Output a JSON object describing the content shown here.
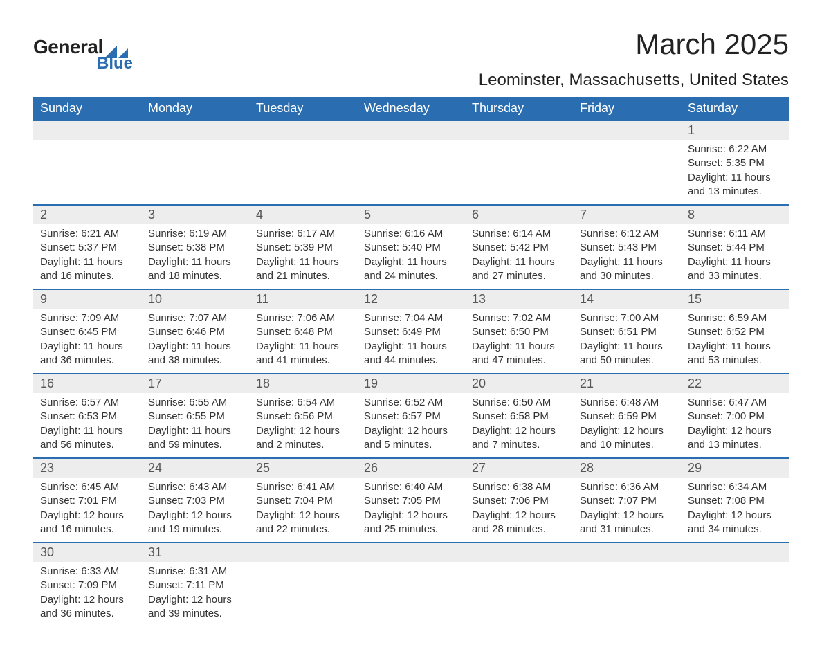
{
  "logo": {
    "main": "General",
    "sub": "Blue",
    "mark_color": "#2a6db0"
  },
  "title": "March 2025",
  "location": "Leominster, Massachusetts, United States",
  "colors": {
    "header_bg": "#2a6db0",
    "header_text": "#ffffff",
    "daynum_bg": "#ededed",
    "border": "#2a6db0",
    "text": "#333333"
  },
  "weekdays": [
    "Sunday",
    "Monday",
    "Tuesday",
    "Wednesday",
    "Thursday",
    "Friday",
    "Saturday"
  ],
  "weeks": [
    [
      null,
      null,
      null,
      null,
      null,
      null,
      {
        "n": "1",
        "sr": "Sunrise: 6:22 AM",
        "ss": "Sunset: 5:35 PM",
        "d1": "Daylight: 11 hours",
        "d2": "and 13 minutes."
      }
    ],
    [
      {
        "n": "2",
        "sr": "Sunrise: 6:21 AM",
        "ss": "Sunset: 5:37 PM",
        "d1": "Daylight: 11 hours",
        "d2": "and 16 minutes."
      },
      {
        "n": "3",
        "sr": "Sunrise: 6:19 AM",
        "ss": "Sunset: 5:38 PM",
        "d1": "Daylight: 11 hours",
        "d2": "and 18 minutes."
      },
      {
        "n": "4",
        "sr": "Sunrise: 6:17 AM",
        "ss": "Sunset: 5:39 PM",
        "d1": "Daylight: 11 hours",
        "d2": "and 21 minutes."
      },
      {
        "n": "5",
        "sr": "Sunrise: 6:16 AM",
        "ss": "Sunset: 5:40 PM",
        "d1": "Daylight: 11 hours",
        "d2": "and 24 minutes."
      },
      {
        "n": "6",
        "sr": "Sunrise: 6:14 AM",
        "ss": "Sunset: 5:42 PM",
        "d1": "Daylight: 11 hours",
        "d2": "and 27 minutes."
      },
      {
        "n": "7",
        "sr": "Sunrise: 6:12 AM",
        "ss": "Sunset: 5:43 PM",
        "d1": "Daylight: 11 hours",
        "d2": "and 30 minutes."
      },
      {
        "n": "8",
        "sr": "Sunrise: 6:11 AM",
        "ss": "Sunset: 5:44 PM",
        "d1": "Daylight: 11 hours",
        "d2": "and 33 minutes."
      }
    ],
    [
      {
        "n": "9",
        "sr": "Sunrise: 7:09 AM",
        "ss": "Sunset: 6:45 PM",
        "d1": "Daylight: 11 hours",
        "d2": "and 36 minutes."
      },
      {
        "n": "10",
        "sr": "Sunrise: 7:07 AM",
        "ss": "Sunset: 6:46 PM",
        "d1": "Daylight: 11 hours",
        "d2": "and 38 minutes."
      },
      {
        "n": "11",
        "sr": "Sunrise: 7:06 AM",
        "ss": "Sunset: 6:48 PM",
        "d1": "Daylight: 11 hours",
        "d2": "and 41 minutes."
      },
      {
        "n": "12",
        "sr": "Sunrise: 7:04 AM",
        "ss": "Sunset: 6:49 PM",
        "d1": "Daylight: 11 hours",
        "d2": "and 44 minutes."
      },
      {
        "n": "13",
        "sr": "Sunrise: 7:02 AM",
        "ss": "Sunset: 6:50 PM",
        "d1": "Daylight: 11 hours",
        "d2": "and 47 minutes."
      },
      {
        "n": "14",
        "sr": "Sunrise: 7:00 AM",
        "ss": "Sunset: 6:51 PM",
        "d1": "Daylight: 11 hours",
        "d2": "and 50 minutes."
      },
      {
        "n": "15",
        "sr": "Sunrise: 6:59 AM",
        "ss": "Sunset: 6:52 PM",
        "d1": "Daylight: 11 hours",
        "d2": "and 53 minutes."
      }
    ],
    [
      {
        "n": "16",
        "sr": "Sunrise: 6:57 AM",
        "ss": "Sunset: 6:53 PM",
        "d1": "Daylight: 11 hours",
        "d2": "and 56 minutes."
      },
      {
        "n": "17",
        "sr": "Sunrise: 6:55 AM",
        "ss": "Sunset: 6:55 PM",
        "d1": "Daylight: 11 hours",
        "d2": "and 59 minutes."
      },
      {
        "n": "18",
        "sr": "Sunrise: 6:54 AM",
        "ss": "Sunset: 6:56 PM",
        "d1": "Daylight: 12 hours",
        "d2": "and 2 minutes."
      },
      {
        "n": "19",
        "sr": "Sunrise: 6:52 AM",
        "ss": "Sunset: 6:57 PM",
        "d1": "Daylight: 12 hours",
        "d2": "and 5 minutes."
      },
      {
        "n": "20",
        "sr": "Sunrise: 6:50 AM",
        "ss": "Sunset: 6:58 PM",
        "d1": "Daylight: 12 hours",
        "d2": "and 7 minutes."
      },
      {
        "n": "21",
        "sr": "Sunrise: 6:48 AM",
        "ss": "Sunset: 6:59 PM",
        "d1": "Daylight: 12 hours",
        "d2": "and 10 minutes."
      },
      {
        "n": "22",
        "sr": "Sunrise: 6:47 AM",
        "ss": "Sunset: 7:00 PM",
        "d1": "Daylight: 12 hours",
        "d2": "and 13 minutes."
      }
    ],
    [
      {
        "n": "23",
        "sr": "Sunrise: 6:45 AM",
        "ss": "Sunset: 7:01 PM",
        "d1": "Daylight: 12 hours",
        "d2": "and 16 minutes."
      },
      {
        "n": "24",
        "sr": "Sunrise: 6:43 AM",
        "ss": "Sunset: 7:03 PM",
        "d1": "Daylight: 12 hours",
        "d2": "and 19 minutes."
      },
      {
        "n": "25",
        "sr": "Sunrise: 6:41 AM",
        "ss": "Sunset: 7:04 PM",
        "d1": "Daylight: 12 hours",
        "d2": "and 22 minutes."
      },
      {
        "n": "26",
        "sr": "Sunrise: 6:40 AM",
        "ss": "Sunset: 7:05 PM",
        "d1": "Daylight: 12 hours",
        "d2": "and 25 minutes."
      },
      {
        "n": "27",
        "sr": "Sunrise: 6:38 AM",
        "ss": "Sunset: 7:06 PM",
        "d1": "Daylight: 12 hours",
        "d2": "and 28 minutes."
      },
      {
        "n": "28",
        "sr": "Sunrise: 6:36 AM",
        "ss": "Sunset: 7:07 PM",
        "d1": "Daylight: 12 hours",
        "d2": "and 31 minutes."
      },
      {
        "n": "29",
        "sr": "Sunrise: 6:34 AM",
        "ss": "Sunset: 7:08 PM",
        "d1": "Daylight: 12 hours",
        "d2": "and 34 minutes."
      }
    ],
    [
      {
        "n": "30",
        "sr": "Sunrise: 6:33 AM",
        "ss": "Sunset: 7:09 PM",
        "d1": "Daylight: 12 hours",
        "d2": "and 36 minutes."
      },
      {
        "n": "31",
        "sr": "Sunrise: 6:31 AM",
        "ss": "Sunset: 7:11 PM",
        "d1": "Daylight: 12 hours",
        "d2": "and 39 minutes."
      },
      null,
      null,
      null,
      null,
      null
    ]
  ]
}
